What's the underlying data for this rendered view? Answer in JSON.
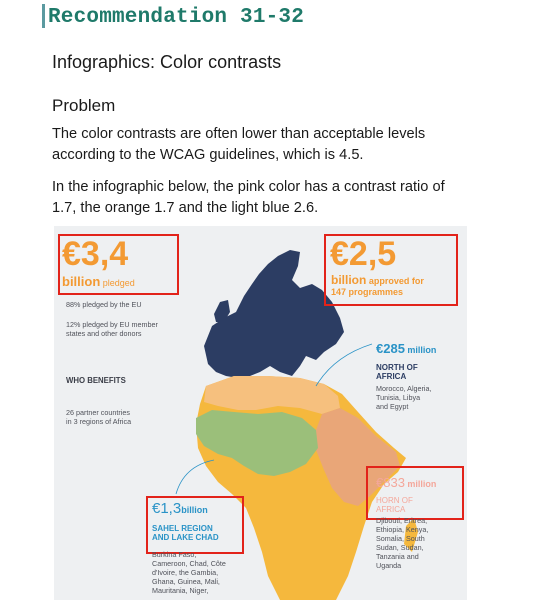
{
  "header": {
    "title": "Recommendation 31-32"
  },
  "subtitle": "Infographics: Color contrasts",
  "problem_heading": "Problem",
  "paragraph1": {
    "line1": "The color contrasts are often lower than acceptable levels",
    "line2": "according to the WCAG guidelines, which is 4.5."
  },
  "paragraph2": {
    "line1": "In the infographic below, the pink color has a contrast ratio of",
    "line2": "1.7, the orange 1.7 and the light blue 2.6."
  },
  "infographic": {
    "pledged": {
      "amount": "€3,4",
      "label_bold": "billion",
      "label": " pledged"
    },
    "eu_pct": "88% pledged by the EU",
    "member_line1": "12% pledged by EU member",
    "member_line2": "states and other donors",
    "who_benefits": "WHO BENEFITS",
    "partners_line1": "26 partner countries",
    "partners_line2": "in 3 regions of Africa",
    "approved": {
      "amount": "€2,5",
      "label_bold": "billion",
      "label": " approved for",
      "label2": "147 programmes"
    },
    "north": {
      "amount": "€285",
      "unit": " million",
      "title_line1": "NORTH OF",
      "title_line2": "AFRICA",
      "c1": "Morocco, Algeria,",
      "c2": "Tunisia, Libya",
      "c3": "and Egypt"
    },
    "horn": {
      "amount": "€833",
      "unit": " million",
      "title_line1": "HORN OF",
      "title_line2": "AFRICA",
      "c1": "Djibouti, Eritrea,",
      "c2": "Ethiopia, Kenya,",
      "c3": "Somalia, South",
      "c4": "Sudan, Sudan,",
      "c5": "Tanzania and",
      "c6": "Uganda"
    },
    "sahel": {
      "amount": "€1,3",
      "unit": "billion",
      "title_line1": "SAHEL REGION",
      "title_line2": "AND LAKE CHAD",
      "c1": "Burkina Faso,",
      "c2": "Cameroon, Chad, Côte",
      "c3": "d'Ivoire, the Gambia,",
      "c4": "Ghana, Guinea, Mali,",
      "c5": "Mauritania, Niger,"
    }
  },
  "colors": {
    "accent_green": "#1f7a6a",
    "highlight_red": "#e2231a",
    "orange": "#f39a33",
    "pink": "#f4a79b",
    "light_blue": "#2a93c7",
    "europe_navy": "#2c3d63"
  }
}
